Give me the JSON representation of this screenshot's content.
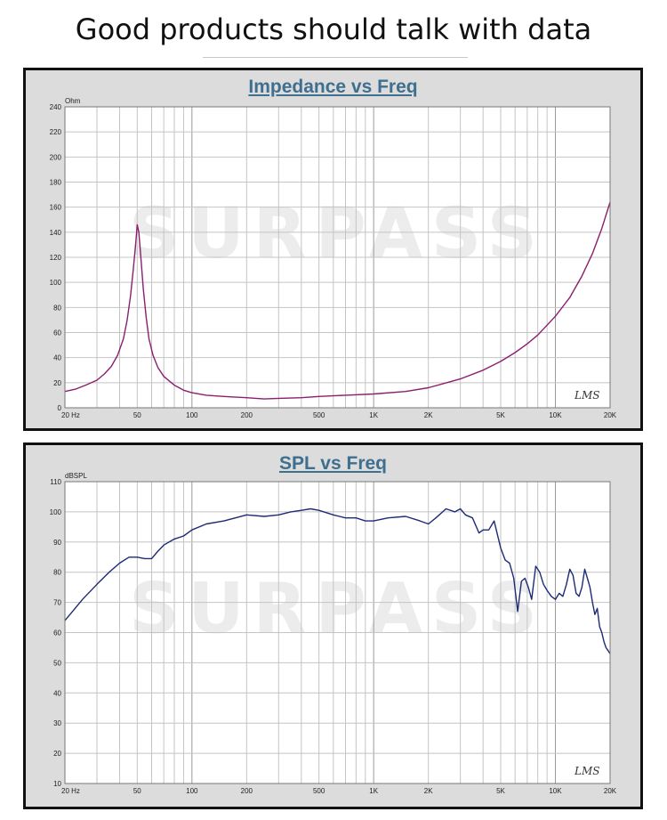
{
  "headline": "Good products should talk with data",
  "charts": {
    "impedance": {
      "title": "Impedance vs Freq",
      "unit": "Ohm",
      "logo": "LMS",
      "watermark": "SURPASS"
    },
    "spl": {
      "title": "SPL vs Freq",
      "unit": "dBSPL",
      "logo": "LMS",
      "watermark": "SURPASS"
    }
  },
  "colors": {
    "impedance_line": "#8a1f6e",
    "spl_line": "#1d2b74",
    "plot_bg": "#ffffff",
    "panel_bg": "#dcdcdc",
    "title": "#3f6f8f",
    "watermark": "#ececec"
  },
  "chart_data": [
    {
      "type": "line",
      "title": "Impedance vs Freq",
      "ylabel": "Ohm",
      "xscale": "log",
      "xlim": [
        20,
        20000
      ],
      "ylim": [
        0,
        240
      ],
      "grid": true,
      "x_tick_labels": [
        "20 Hz",
        "50",
        "100",
        "200",
        "500",
        "1K",
        "2K",
        "5K",
        "10K",
        "20K"
      ],
      "x_ticks": [
        20,
        50,
        100,
        200,
        500,
        1000,
        2000,
        5000,
        10000,
        20000
      ],
      "y_ticks": [
        0,
        20,
        40,
        60,
        80,
        100,
        120,
        140,
        160,
        180,
        200,
        220,
        240
      ],
      "series": [
        {
          "x": [
            20,
            23,
            26,
            30,
            33,
            36,
            39,
            42,
            44,
            46,
            47.5,
            49,
            50,
            51,
            52.5,
            54,
            56,
            58,
            61,
            65,
            70,
            80,
            90,
            100,
            120,
            150,
            200,
            250,
            300,
            400,
            500,
            700,
            1000,
            1500,
            2000,
            3000,
            4000,
            5000,
            6000,
            7000,
            8000,
            10000,
            12000,
            14000,
            16000,
            18000,
            20000
          ],
          "y": [
            13,
            15,
            18,
            22,
            27,
            33,
            42,
            55,
            70,
            90,
            110,
            130,
            146,
            140,
            118,
            95,
            72,
            55,
            42,
            32,
            25,
            18,
            14,
            12,
            10,
            9,
            8,
            7,
            7.5,
            8,
            9,
            10,
            11,
            13,
            16,
            23,
            30,
            37,
            44,
            51,
            58,
            73,
            88,
            105,
            123,
            143,
            164
          ]
        }
      ]
    },
    {
      "type": "line",
      "title": "SPL vs Freq",
      "ylabel": "dBSPL",
      "xscale": "log",
      "xlim": [
        20,
        20000
      ],
      "ylim": [
        10,
        110
      ],
      "grid": true,
      "x_tick_labels": [
        "20 Hz",
        "50",
        "100",
        "200",
        "500",
        "1K",
        "2K",
        "5K",
        "10K",
        "20K"
      ],
      "x_ticks": [
        20,
        50,
        100,
        200,
        500,
        1000,
        2000,
        5000,
        10000,
        20000
      ],
      "y_ticks": [
        10,
        20,
        30,
        40,
        50,
        60,
        70,
        80,
        90,
        100,
        110
      ],
      "series": [
        {
          "x": [
            20,
            22,
            25,
            30,
            35,
            40,
            45,
            50,
            55,
            60,
            65,
            70,
            80,
            90,
            100,
            120,
            150,
            200,
            250,
            300,
            350,
            400,
            450,
            500,
            600,
            700,
            800,
            900,
            1000,
            1200,
            1500,
            1800,
            2000,
            2200,
            2500,
            2800,
            3000,
            3200,
            3500,
            3800,
            4000,
            4300,
            4600,
            5000,
            5300,
            5600,
            5900,
            6200,
            6500,
            6800,
            7100,
            7400,
            7800,
            8200,
            8600,
            9000,
            9500,
            10000,
            10500,
            11000,
            11500,
            12000,
            12500,
            13000,
            13500,
            14000,
            14500,
            15000,
            15500,
            16000,
            16500,
            17000,
            17500,
            18000,
            18500,
            19000,
            19500,
            20000
          ],
          "y": [
            64,
            67,
            71,
            76,
            80,
            83,
            85,
            85,
            84.5,
            84.5,
            87,
            89,
            91,
            92,
            94,
            96,
            97,
            99,
            98.5,
            99,
            100,
            100.5,
            101,
            100.5,
            99,
            98,
            98,
            97,
            97,
            98,
            98.5,
            97,
            96,
            98,
            101,
            100,
            101,
            99,
            98,
            93,
            94,
            94,
            97,
            88,
            84,
            83,
            78,
            67,
            77,
            78,
            75,
            71,
            82,
            80,
            76,
            74,
            72,
            71,
            73,
            72,
            76,
            81,
            79,
            73,
            72,
            75,
            81,
            78,
            75,
            70,
            66,
            68,
            62,
            60,
            57,
            55,
            54,
            53
          ]
        }
      ]
    }
  ]
}
